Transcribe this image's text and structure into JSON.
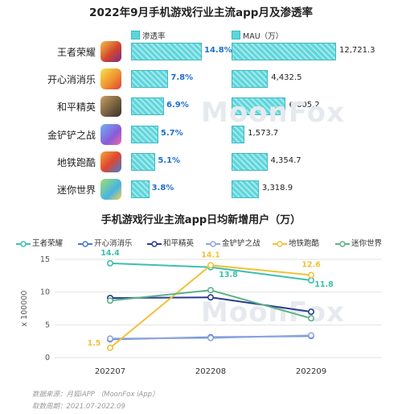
{
  "chart_data": [
    {
      "type": "bar",
      "title": "2022年9月手机游戏行业主流app月及渗透率",
      "categories": [
        "王者荣耀",
        "开心消消乐",
        "和平精英",
        "金铲铲之战",
        "地铁跑酷",
        "迷你世界"
      ],
      "series": [
        {
          "name": "渗透率",
          "values": [
            14.8,
            7.8,
            6.9,
            5.7,
            5.1,
            3.8
          ],
          "labels": [
            "14.8%",
            "7.8%",
            "6.9%",
            "5.7%",
            "5.1%",
            "3.8%"
          ]
        },
        {
          "name": "MAU（万）",
          "values": [
            12721.3,
            4432.5,
            6605.2,
            1573.7,
            4354.7,
            3318.9
          ],
          "labels": [
            "12,721.3",
            "4,432.5",
            "6,605.2",
            "1,573.7",
            "4,354.7",
            "3,318.9"
          ]
        }
      ],
      "legend": [
        "渗透率",
        "MAU（万）"
      ]
    },
    {
      "type": "line",
      "title": "手机游戏行业主流app日均新增用户（万）",
      "x": [
        "202207",
        "202208",
        "202209"
      ],
      "ylabel": "x 100000",
      "ylim": [
        0,
        15
      ],
      "yticks": [
        "0",
        "5",
        "10",
        "15"
      ],
      "legend_position": "top",
      "series": [
        {
          "name": "王者荣耀",
          "values": [
            14.4,
            13.8,
            11.8
          ],
          "color": "#3dbfae"
        },
        {
          "name": "开心消消乐",
          "values": [
            2.8,
            3.1,
            3.3
          ],
          "color": "#4a78c8"
        },
        {
          "name": "和平精英",
          "values": [
            9.1,
            9.2,
            7.0
          ],
          "color": "#2b3d8f"
        },
        {
          "name": "金铲铲之战",
          "values": [
            2.9,
            3.0,
            3.4
          ],
          "color": "#8ea6e0"
        },
        {
          "name": "地铁跑酷",
          "values": [
            1.5,
            14.1,
            12.6
          ],
          "color": "#f0c23a"
        },
        {
          "name": "迷你世界",
          "values": [
            8.7,
            10.3,
            6.0
          ],
          "color": "#5db38a"
        }
      ],
      "data_labels": [
        {
          "text": "14.4",
          "series": 0,
          "index": 0
        },
        {
          "text": "13.8",
          "series": 0,
          "index": 1
        },
        {
          "text": "11.8",
          "series": 0,
          "index": 2
        },
        {
          "text": "1.5",
          "series": 4,
          "index": 0
        },
        {
          "text": "14.1",
          "series": 4,
          "index": 1
        },
        {
          "text": "12.6",
          "series": 4,
          "index": 2
        }
      ]
    }
  ],
  "footer": {
    "source": "数据来源：月狐iAPP （MoonFox iApp）",
    "period": "取数周期：2021.07-2022.09"
  },
  "watermark": "MoonFox",
  "colors": {
    "bar": "#5dd6db",
    "pen_label": "#1e6fcf"
  },
  "icons": [
    "wangzhe-app-icon",
    "xiaoxiaole-app-icon",
    "heping-app-icon",
    "jinchanchan-app-icon",
    "ditie-app-icon",
    "mini-world-app-icon"
  ]
}
